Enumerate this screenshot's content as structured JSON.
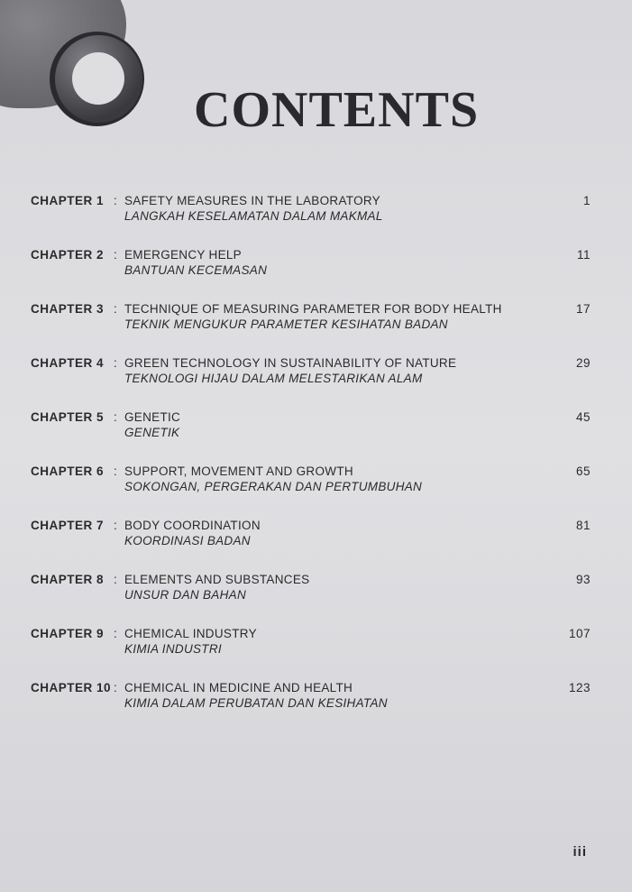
{
  "heading": "CONTENTS",
  "page_label": "iii",
  "chapters": [
    {
      "label": "CHAPTER 1",
      "title_en": "SAFETY MEASURES IN THE LABORATORY",
      "title_ms": "LANGKAH KESELAMATAN DALAM MAKMAL",
      "page": "1"
    },
    {
      "label": "CHAPTER 2",
      "title_en": "EMERGENCY HELP",
      "title_ms": "BANTUAN KECEMASAN",
      "page": "11"
    },
    {
      "label": "CHAPTER 3",
      "title_en": "TECHNIQUE OF MEASURING PARAMETER FOR BODY HEALTH",
      "title_ms": "TEKNIK MENGUKUR PARAMETER KESIHATAN BADAN",
      "page": "17"
    },
    {
      "label": "CHAPTER 4",
      "title_en": "GREEN TECHNOLOGY IN SUSTAINABILITY OF NATURE",
      "title_ms": "TEKNOLOGI HIJAU DALAM MELESTARIKAN ALAM",
      "page": "29"
    },
    {
      "label": "CHAPTER 5",
      "title_en": "GENETIC",
      "title_ms": "GENETIK",
      "page": "45"
    },
    {
      "label": "CHAPTER 6",
      "title_en": "SUPPORT, MOVEMENT AND GROWTH",
      "title_ms": "SOKONGAN, PERGERAKAN DAN PERTUMBUHAN",
      "page": "65"
    },
    {
      "label": "CHAPTER 7",
      "title_en": "BODY COORDINATION",
      "title_ms": "KOORDINASI BADAN",
      "page": "81"
    },
    {
      "label": "CHAPTER 8",
      "title_en": "ELEMENTS AND SUBSTANCES",
      "title_ms": "UNSUR DAN BAHAN",
      "page": "93"
    },
    {
      "label": "CHAPTER 9",
      "title_en": "CHEMICAL INDUSTRY",
      "title_ms": "KIMIA INDUSTRI",
      "page": "107"
    },
    {
      "label": "CHAPTER 10",
      "title_en": "CHEMICAL IN MEDICINE AND HEALTH",
      "title_ms": "KIMIA DALAM PERUBATAN DAN KESIHATAN",
      "page": "123"
    }
  ]
}
